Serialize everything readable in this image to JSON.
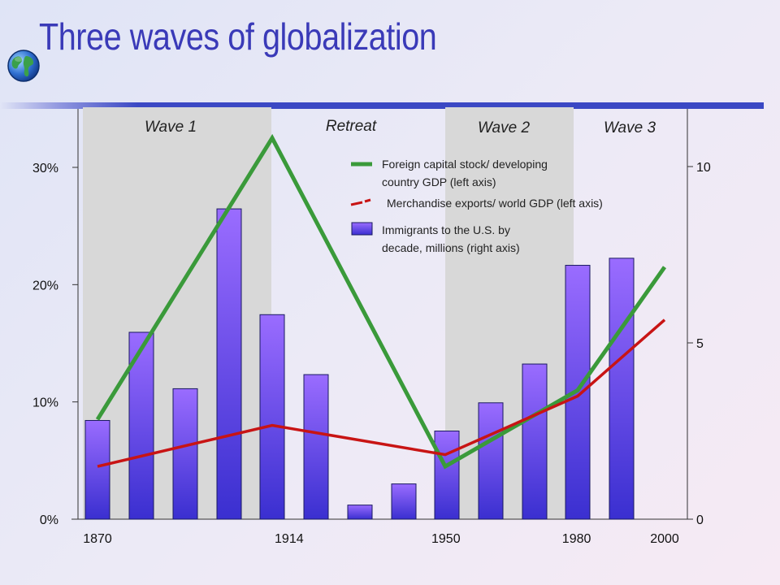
{
  "page": {
    "title": "Three waves of globalization",
    "globe_icon": "globe-icon"
  },
  "chart_data": {
    "type": "bar",
    "title": "Three waves of globalization",
    "x_tick_labels": [
      "1870",
      "1914",
      "1950",
      "1980",
      "2000"
    ],
    "left_axis": {
      "ticks": [
        "0%",
        "10%",
        "20%",
        "30%"
      ],
      "ylim": [
        0,
        35
      ]
    },
    "right_axis": {
      "ticks": [
        "0",
        "5",
        "10"
      ],
      "ylim": [
        0,
        11.67
      ]
    },
    "periods": [
      {
        "label": "Wave 1",
        "shaded": true
      },
      {
        "label": "Retreat",
        "shaded": false
      },
      {
        "label": "Wave 2",
        "shaded": true
      },
      {
        "label": "Wave 3",
        "shaded": false
      }
    ],
    "period_bounds": [
      [
        1867,
        1914
      ],
      [
        1914,
        1950
      ],
      [
        1950,
        1980
      ],
      [
        1980,
        2000
      ]
    ],
    "bars": {
      "name": "Immigrants to the U.S. by decade, millions (right axis)",
      "axis": "right",
      "color": "#8a5cf0",
      "x": [
        1870,
        1880,
        1890,
        1900,
        1910,
        1920,
        1930,
        1940,
        1950,
        1960,
        1970,
        1980,
        1990
      ],
      "values": [
        2.8,
        5.3,
        3.7,
        8.8,
        5.8,
        4.1,
        0.4,
        1.0,
        2.5,
        3.3,
        4.4,
        7.2,
        7.4
      ]
    },
    "series": [
      {
        "name": "Foreign capital stock/ developing country GDP (left axis)",
        "axis": "left",
        "color": "#3a9a3a",
        "x": [
          1870,
          1914,
          1950,
          1980,
          2000
        ],
        "values": [
          8.5,
          32.5,
          4.5,
          11,
          21.5
        ]
      },
      {
        "name": "Merchandise exports/ world GDP (left axis)",
        "axis": "left",
        "color": "#c81414",
        "x": [
          1870,
          1914,
          1950,
          1980,
          2000
        ],
        "values": [
          4.5,
          8,
          5.5,
          10.5,
          17
        ]
      }
    ],
    "legend": {
      "placement": "top-right",
      "items": [
        {
          "text": [
            "Foreign capital stock/ developing",
            "country GDP  (left axis)"
          ],
          "color": "#3a9a3a",
          "style": "line"
        },
        {
          "text": [
            "Merchandise exports/ world GDP  (left axis)"
          ],
          "color": "#c81414",
          "style": "dash"
        },
        {
          "text": [
            "Immigrants to the U.S. by",
            "decade, millions (right axis)"
          ],
          "color": "#8a5cf0",
          "style": "box"
        }
      ]
    }
  }
}
